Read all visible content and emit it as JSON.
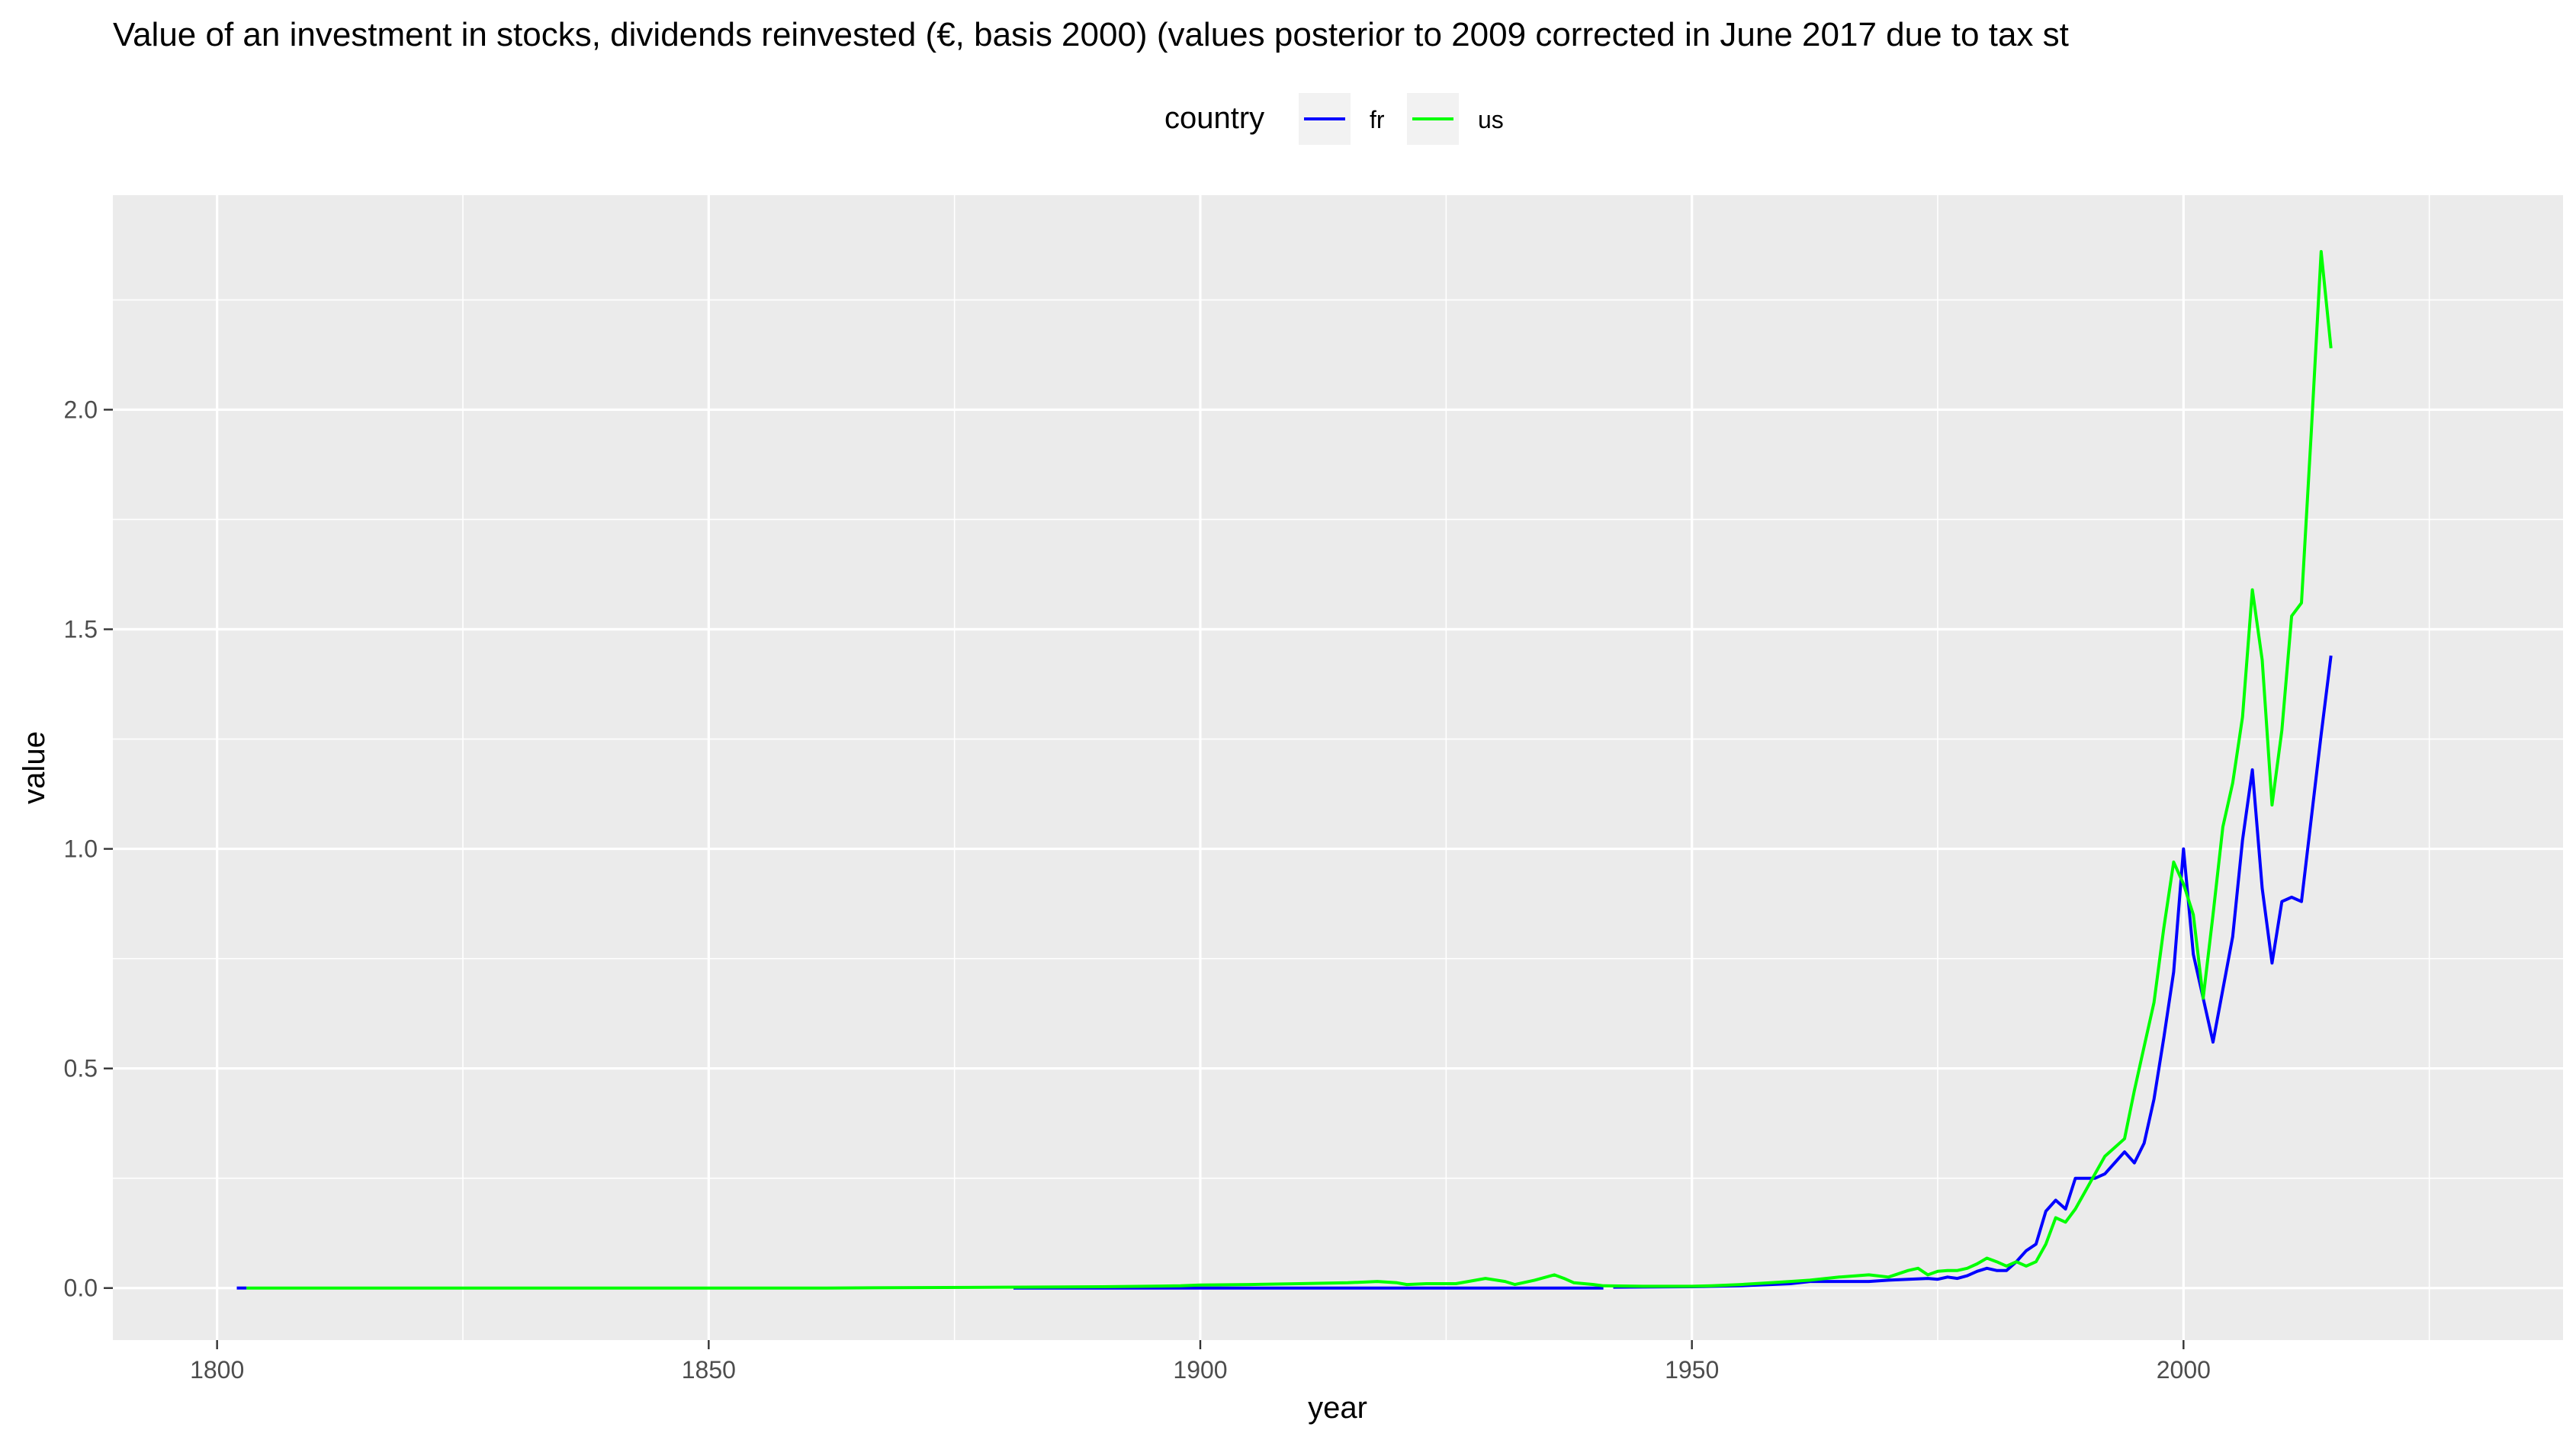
{
  "chart_data": {
    "type": "line",
    "title": "Value of an investment in stocks, dividends reinvested (€, basis 2000) (values posterior to 2009 corrected in June 2017 due to tax st",
    "xlabel": "year",
    "ylabel": "value",
    "xlim": [
      1789.4,
      2038.6
    ],
    "ylim": [
      -0.1185,
      2.4885
    ],
    "x_ticks": [
      1800,
      1850,
      1900,
      1950,
      2000
    ],
    "y_ticks": [
      0.0,
      0.5,
      1.0,
      1.5,
      2.0
    ],
    "x_tick_labels": [
      "1800",
      "1850",
      "1900",
      "1950",
      "2000"
    ],
    "y_tick_labels": [
      "0.0",
      "0.5",
      "1.0",
      "1.5",
      "2.0"
    ],
    "grid": true,
    "legend": {
      "title": "country",
      "position": "top",
      "entries": [
        {
          "name": "fr",
          "color": "#0000ff"
        },
        {
          "name": "us",
          "color": "#00ff00"
        }
      ]
    },
    "series": [
      {
        "name": "fr",
        "color": "#0000ff",
        "segments": [
          [
            [
              1802,
              0.0
            ],
            [
              1803,
              0.0
            ]
          ],
          [
            [
              1881,
              0.0
            ],
            [
              1900,
              0.0
            ],
            [
              1920,
              0.0
            ],
            [
              1940,
              0.0
            ],
            [
              1941,
              0.0
            ]
          ],
          [
            [
              1942,
              0.002
            ],
            [
              1950,
              0.003
            ],
            [
              1955,
              0.005
            ],
            [
              1958,
              0.008
            ],
            [
              1960,
              0.01
            ],
            [
              1962,
              0.015
            ],
            [
              1965,
              0.015
            ],
            [
              1968,
              0.015
            ],
            [
              1970,
              0.018
            ],
            [
              1972,
              0.02
            ],
            [
              1974,
              0.022
            ],
            [
              1975,
              0.02
            ],
            [
              1976,
              0.025
            ],
            [
              1977,
              0.022
            ],
            [
              1978,
              0.028
            ],
            [
              1979,
              0.038
            ],
            [
              1980,
              0.045
            ],
            [
              1981,
              0.04
            ],
            [
              1982,
              0.04
            ],
            [
              1983,
              0.06
            ],
            [
              1984,
              0.085
            ],
            [
              1985,
              0.1
            ],
            [
              1986,
              0.175
            ],
            [
              1987,
              0.2
            ],
            [
              1988,
              0.18
            ],
            [
              1989,
              0.25
            ],
            [
              1990,
              0.25
            ],
            [
              1991,
              0.25
            ],
            [
              1992,
              0.26
            ],
            [
              1993,
              0.285
            ],
            [
              1994,
              0.31
            ],
            [
              1995,
              0.285
            ],
            [
              1996,
              0.33
            ],
            [
              1997,
              0.43
            ],
            [
              1998,
              0.57
            ],
            [
              1999,
              0.72
            ],
            [
              2000,
              1.0
            ],
            [
              2001,
              0.76
            ],
            [
              2002,
              0.66
            ],
            [
              2003,
              0.56
            ],
            [
              2004,
              0.68
            ],
            [
              2005,
              0.8
            ],
            [
              2006,
              1.02
            ],
            [
              2007,
              1.18
            ],
            [
              2008,
              0.91
            ],
            [
              2009,
              0.74
            ],
            [
              2010,
              0.88
            ],
            [
              2011,
              0.89
            ],
            [
              2012,
              0.88
            ],
            [
              2013,
              1.07
            ],
            [
              2014,
              1.26
            ],
            [
              2015,
              1.44
            ]
          ]
        ]
      },
      {
        "name": "us",
        "color": "#00ff00",
        "segments": [
          [
            [
              1803,
              0.0
            ],
            [
              1850,
              0.0
            ],
            [
              1862,
              0.0
            ],
            [
              1880,
              0.002
            ],
            [
              1890,
              0.003
            ],
            [
              1898,
              0.005
            ],
            [
              1900,
              0.007
            ],
            [
              1905,
              0.008
            ],
            [
              1910,
              0.01
            ],
            [
              1915,
              0.012
            ],
            [
              1918,
              0.015
            ],
            [
              1920,
              0.012
            ],
            [
              1921,
              0.008
            ],
            [
              1923,
              0.01
            ],
            [
              1926,
              0.01
            ],
            [
              1929,
              0.022
            ],
            [
              1931,
              0.015
            ],
            [
              1932,
              0.008
            ],
            [
              1934,
              0.018
            ],
            [
              1936,
              0.03
            ],
            [
              1937,
              0.022
            ],
            [
              1938,
              0.012
            ],
            [
              1940,
              0.008
            ],
            [
              1941,
              0.005
            ],
            [
              1945,
              0.004
            ],
            [
              1950,
              0.004
            ],
            [
              1952,
              0.005
            ],
            [
              1955,
              0.008
            ],
            [
              1958,
              0.012
            ],
            [
              1960,
              0.015
            ],
            [
              1962,
              0.018
            ],
            [
              1965,
              0.025
            ],
            [
              1968,
              0.03
            ],
            [
              1970,
              0.025
            ],
            [
              1972,
              0.04
            ],
            [
              1973,
              0.045
            ],
            [
              1974,
              0.03
            ],
            [
              1975,
              0.038
            ],
            [
              1976,
              0.04
            ],
            [
              1977,
              0.04
            ],
            [
              1978,
              0.045
            ],
            [
              1979,
              0.055
            ],
            [
              1980,
              0.068
            ],
            [
              1981,
              0.06
            ],
            [
              1982,
              0.05
            ],
            [
              1983,
              0.06
            ],
            [
              1984,
              0.05
            ],
            [
              1985,
              0.06
            ],
            [
              1986,
              0.1
            ],
            [
              1987,
              0.16
            ],
            [
              1988,
              0.15
            ],
            [
              1989,
              0.18
            ],
            [
              1990,
              0.22
            ],
            [
              1991,
              0.26
            ],
            [
              1992,
              0.3
            ],
            [
              1993,
              0.32
            ],
            [
              1994,
              0.34
            ],
            [
              1995,
              0.45
            ],
            [
              1996,
              0.55
            ],
            [
              1997,
              0.65
            ],
            [
              1998,
              0.82
            ],
            [
              1999,
              0.97
            ],
            [
              2000,
              0.92
            ],
            [
              2001,
              0.85
            ],
            [
              2002,
              0.66
            ],
            [
              2003,
              0.85
            ],
            [
              2004,
              1.05
            ],
            [
              2005,
              1.15
            ],
            [
              2006,
              1.3
            ],
            [
              2007,
              1.59
            ],
            [
              2008,
              1.43
            ],
            [
              2009,
              1.1
            ],
            [
              2010,
              1.27
            ],
            [
              2011,
              1.53
            ],
            [
              2012,
              1.56
            ],
            [
              2013,
              1.95
            ],
            [
              2014,
              2.36
            ],
            [
              2015,
              2.14
            ]
          ]
        ]
      }
    ]
  }
}
